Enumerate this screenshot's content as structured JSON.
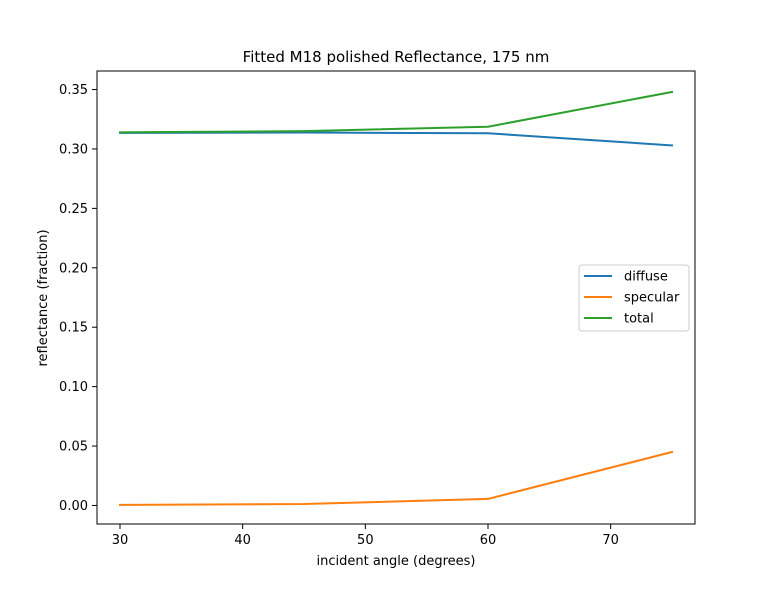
{
  "chart_data": {
    "type": "line",
    "title": "Fitted M18 polished Reflectance, 175 nm",
    "xlabel": "incident angle (degrees)",
    "ylabel": "reflectance (fraction)",
    "x": [
      30,
      45,
      60,
      75
    ],
    "xlim": [
      28.125,
      76.875
    ],
    "ylim": [
      -0.0156,
      0.3656
    ],
    "xticks": [
      30,
      40,
      50,
      60,
      70
    ],
    "xtick_labels": [
      "30",
      "40",
      "50",
      "60",
      "70"
    ],
    "yticks": [
      0.0,
      0.05,
      0.1,
      0.15,
      0.2,
      0.25,
      0.3,
      0.35
    ],
    "ytick_labels": [
      "0.00",
      "0.05",
      "0.10",
      "0.15",
      "0.20",
      "0.25",
      "0.30",
      "0.35"
    ],
    "grid": false,
    "legend_position": "center-right",
    "series": [
      {
        "name": "diffuse",
        "color": "#1f77b4",
        "values": [
          0.3135,
          0.3138,
          0.3132,
          0.303
        ]
      },
      {
        "name": "specular",
        "color": "#ff7f0e",
        "values": [
          0.0005,
          0.0012,
          0.0055,
          0.045
        ]
      },
      {
        "name": "total",
        "color": "#2ca02c",
        "values": [
          0.314,
          0.315,
          0.3187,
          0.348
        ]
      }
    ]
  }
}
